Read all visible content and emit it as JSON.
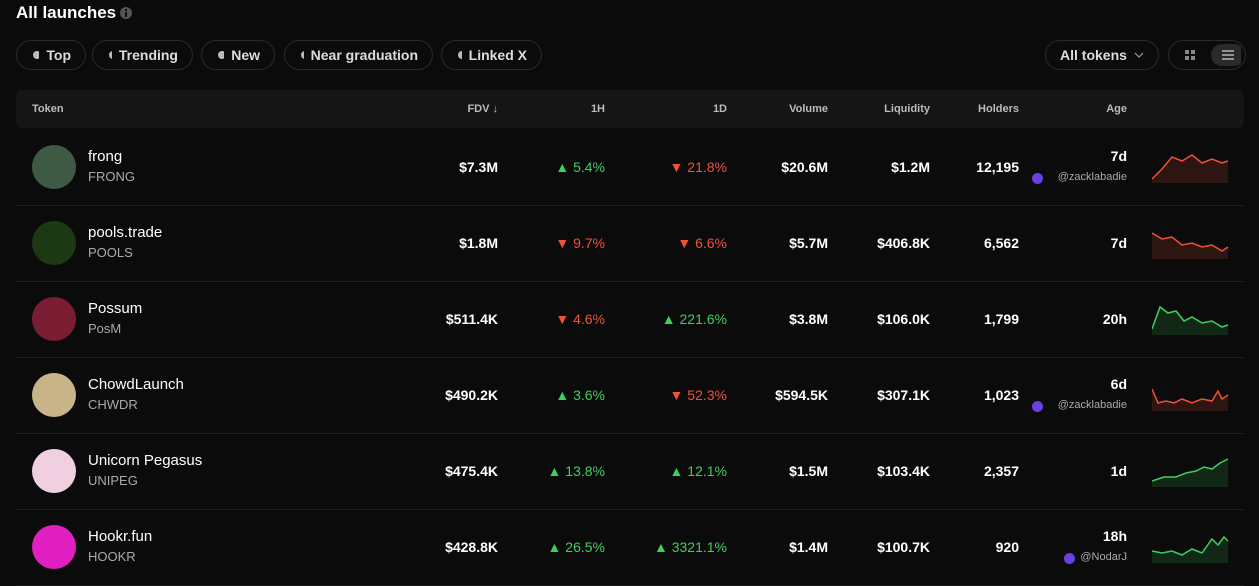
{
  "header": {
    "title": "All launches",
    "filters": [
      "Top",
      "Trending",
      "New",
      "Near graduation",
      "Linked X"
    ],
    "token_select": "All tokens"
  },
  "table": {
    "columns": [
      "Token",
      "FDV ↓",
      "1H",
      "1D",
      "Volume",
      "Liquidity",
      "Holders",
      "Age"
    ],
    "rows": [
      {
        "name": "frong",
        "symbol": "FRONG",
        "fdv": "$7.3M",
        "h1": "▲ 5.4%",
        "d1": "▼ 21.8%",
        "volume": "$20.6M",
        "liquidity": "$1.2M",
        "holders": "12,195",
        "age": "7d",
        "creator": "@zacklabadie"
      },
      {
        "name": "pools.trade",
        "symbol": "POOLS",
        "fdv": "$1.8M",
        "h1": "▼ 9.7%",
        "d1": "▼ 6.6%",
        "volume": "$5.7M",
        "liquidity": "$406.8K",
        "holders": "6,562",
        "age": "7d"
      },
      {
        "name": "Possum",
        "symbol": "PosM",
        "fdv": "$511.4K",
        "h1": "▼ 4.6%",
        "d1": "▲ 221.6%",
        "volume": "$3.8M",
        "liquidity": "$106.0K",
        "holders": "1,799",
        "age": "20h"
      },
      {
        "name": "ChowdLaunch",
        "symbol": "CHWDR",
        "fdv": "$490.2K",
        "h1": "▲ 3.6%",
        "d1": "▼ 52.3%",
        "volume": "$594.5K",
        "liquidity": "$307.1K",
        "holders": "1,023",
        "age": "6d",
        "creator": "@zacklabadie"
      },
      {
        "name": "Unicorn Pegasus",
        "symbol": "UNIPEG",
        "fdv": "$475.4K",
        "h1": "▲ 13.8%",
        "d1": "▲ 12.1%",
        "volume": "$1.5M",
        "liquidity": "$103.4K",
        "holders": "2,357",
        "age": "1d"
      },
      {
        "name": "Hookr.fun",
        "symbol": "HOOKR",
        "fdv": "$428.8K",
        "h1": "▲ 26.5%",
        "d1": "▲ 3321.1%",
        "volume": "$1.4M",
        "liquidity": "$100.7K",
        "holders": "920",
        "age": "18h",
        "creator": "@NodarJ"
      }
    ]
  }
}
